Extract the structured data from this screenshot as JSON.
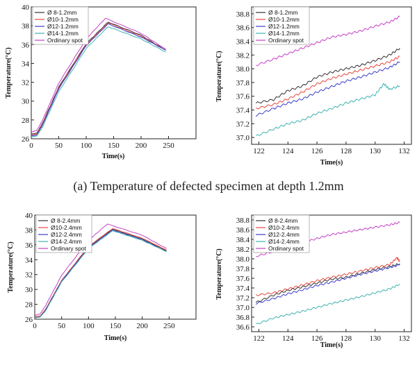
{
  "captions": [
    "(a) Temperature of defected specimen at depth 1.2mm",
    ""
  ],
  "chart_data": [
    {
      "type": "line",
      "xlabel": "Time(s)",
      "ylabel": "Temperature(°C)",
      "xlim": [
        0,
        300
      ],
      "ylim": [
        26,
        40
      ],
      "xticks": [
        "0",
        "50",
        "100",
        "150",
        "200",
        "250"
      ],
      "yticks": [
        "26",
        "28",
        "30",
        "32",
        "34",
        "36",
        "38",
        "40"
      ],
      "legend_position": "top-left",
      "series": [
        {
          "name": "Ø 8-1.2mm",
          "color": "#333333",
          "x": [
            0,
            10,
            20,
            50,
            100,
            140,
            200,
            245
          ],
          "y": [
            26.5,
            26.6,
            27.6,
            31.5,
            36.1,
            38.4,
            37.0,
            35.4
          ]
        },
        {
          "name": "Ø10-1.2mm",
          "color": "#e8483f",
          "x": [
            0,
            10,
            20,
            50,
            100,
            140,
            200,
            245
          ],
          "y": [
            26.4,
            26.5,
            27.5,
            31.4,
            36.0,
            38.3,
            36.9,
            35.4
          ]
        },
        {
          "name": "Ø12-1.2mm",
          "color": "#3b3bc9",
          "x": [
            0,
            10,
            20,
            50,
            100,
            140,
            200,
            245
          ],
          "y": [
            26.3,
            26.4,
            27.4,
            31.3,
            35.9,
            38.2,
            36.8,
            35.4
          ]
        },
        {
          "name": "Ø14-1.2mm",
          "color": "#3fb2b2",
          "x": [
            0,
            10,
            20,
            50,
            100,
            140,
            200,
            245
          ],
          "y": [
            26.2,
            26.3,
            27.2,
            31.0,
            35.6,
            37.9,
            36.6,
            35.2
          ]
        },
        {
          "name": "Ordinary spot",
          "color": "#c63fc6",
          "x": [
            0,
            10,
            20,
            50,
            100,
            135,
            200,
            245
          ],
          "y": [
            26.7,
            26.9,
            27.9,
            31.9,
            36.6,
            38.8,
            37.2,
            35.5
          ]
        }
      ]
    },
    {
      "type": "line",
      "xlabel": "Time(s)",
      "ylabel": "Temperature(°C)",
      "xlim": [
        121.5,
        132.5
      ],
      "ylim": [
        36.9,
        38.9
      ],
      "xticks": [
        "122",
        "124",
        "126",
        "128",
        "130",
        "132"
      ],
      "yticks": [
        "37.0",
        "37.2",
        "37.4",
        "37.6",
        "37.8",
        "38.0",
        "38.2",
        "38.4",
        "38.6",
        "38.8"
      ],
      "legend_position": "top-left",
      "series": [
        {
          "name": "Ø 8-1.2mm",
          "color": "#333333",
          "x": [
            121.8,
            123,
            124,
            125,
            126,
            127,
            128,
            129,
            130,
            131,
            131.7
          ],
          "y": [
            37.5,
            37.55,
            37.68,
            37.75,
            37.88,
            37.95,
            38.0,
            38.05,
            38.12,
            38.2,
            38.3
          ]
        },
        {
          "name": "Ø10-1.2mm",
          "color": "#e8483f",
          "x": [
            121.8,
            123,
            124,
            125,
            126,
            127,
            128,
            129,
            130,
            131,
            131.7
          ],
          "y": [
            37.42,
            37.48,
            37.56,
            37.66,
            37.78,
            37.86,
            37.92,
            37.98,
            38.04,
            38.1,
            38.18
          ]
        },
        {
          "name": "Ø12-1.2mm",
          "color": "#3b3bc9",
          "x": [
            121.8,
            123,
            124,
            125,
            126,
            127,
            128,
            129,
            130,
            131,
            131.7
          ],
          "y": [
            37.32,
            37.42,
            37.5,
            37.56,
            37.66,
            37.74,
            37.82,
            37.88,
            37.95,
            38.02,
            38.1
          ]
        },
        {
          "name": "Ø14-1.2mm",
          "color": "#3fb2b2",
          "x": [
            121.8,
            123,
            124,
            125,
            126,
            127,
            128,
            129,
            130,
            130.6,
            131,
            131.7
          ],
          "y": [
            37.02,
            37.12,
            37.2,
            37.25,
            37.35,
            37.42,
            37.5,
            37.56,
            37.62,
            37.78,
            37.7,
            37.75
          ]
        },
        {
          "name": "Ordinary spot",
          "color": "#c63fc6",
          "x": [
            121.8,
            123,
            124,
            125,
            126,
            127,
            128,
            129,
            130,
            131,
            131.7
          ],
          "y": [
            38.05,
            38.14,
            38.22,
            38.3,
            38.38,
            38.46,
            38.5,
            38.55,
            38.62,
            38.68,
            38.76
          ]
        }
      ]
    },
    {
      "type": "line",
      "xlabel": "Time(s)",
      "ylabel": "Temperature(°C)",
      "xlim": [
        0,
        300
      ],
      "ylim": [
        26,
        40
      ],
      "xticks": [
        "0",
        "50",
        "100",
        "150",
        "200",
        "250"
      ],
      "yticks": [
        "26",
        "28",
        "30",
        "32",
        "34",
        "36",
        "38",
        "40"
      ],
      "legend_position": "top-left",
      "series": [
        {
          "name": "Ø 8-2.4mm",
          "color": "#333333",
          "x": [
            0,
            10,
            20,
            50,
            100,
            145,
            200,
            245
          ],
          "y": [
            26.3,
            26.4,
            27.3,
            31.2,
            35.7,
            38.1,
            36.8,
            35.2
          ]
        },
        {
          "name": "Ø10-2.4mm",
          "color": "#e8483f",
          "x": [
            0,
            10,
            20,
            50,
            100,
            145,
            200,
            245
          ],
          "y": [
            26.3,
            26.4,
            27.3,
            31.2,
            35.8,
            38.2,
            36.9,
            35.3
          ]
        },
        {
          "name": "Ø12-2.4mm",
          "color": "#3b3bc9",
          "x": [
            0,
            10,
            20,
            50,
            100,
            145,
            200,
            245
          ],
          "y": [
            26.2,
            26.3,
            27.2,
            31.1,
            35.6,
            38.0,
            36.7,
            35.1
          ]
        },
        {
          "name": "Ø14-2.4mm",
          "color": "#3fb2b2",
          "x": [
            0,
            10,
            20,
            50,
            100,
            145,
            200,
            245
          ],
          "y": [
            26.2,
            26.3,
            27.1,
            31.0,
            35.5,
            37.9,
            36.6,
            35.1
          ]
        },
        {
          "name": "Ordinary spot",
          "color": "#c63fc6",
          "x": [
            0,
            10,
            20,
            50,
            100,
            135,
            200,
            245
          ],
          "y": [
            26.5,
            26.7,
            27.8,
            31.9,
            36.6,
            38.8,
            37.3,
            35.5
          ]
        }
      ]
    },
    {
      "type": "line",
      "xlabel": "Time(s)",
      "ylabel": "Temperature(°C)",
      "xlim": [
        121.5,
        132.5
      ],
      "ylim": [
        36.5,
        38.9
      ],
      "xticks": [
        "122",
        "124",
        "126",
        "128",
        "130",
        "132"
      ],
      "yticks": [
        "36.6",
        "36.8",
        "37.0",
        "37.2",
        "37.4",
        "37.6",
        "37.8",
        "38.0",
        "38.2",
        "38.4",
        "38.6",
        "38.8"
      ],
      "legend_position": "top-left",
      "series": [
        {
          "name": "Ø 8-2.4mm",
          "color": "#333333",
          "x": [
            121.8,
            123,
            124,
            125,
            126,
            127,
            128,
            129,
            130,
            131,
            131.7
          ],
          "y": [
            37.1,
            37.25,
            37.35,
            37.42,
            37.5,
            37.58,
            37.62,
            37.7,
            37.78,
            37.84,
            37.9
          ]
        },
        {
          "name": "Ø10-2.4mm",
          "color": "#e8483f",
          "x": [
            121.8,
            123,
            124,
            125,
            126,
            127,
            128,
            129,
            130,
            131,
            131.5,
            131.7
          ],
          "y": [
            37.25,
            37.3,
            37.38,
            37.46,
            37.55,
            37.62,
            37.68,
            37.75,
            37.82,
            37.88,
            38.02,
            37.95
          ]
        },
        {
          "name": "Ø12-2.4mm",
          "color": "#3b3bc9",
          "x": [
            121.8,
            123,
            124,
            125,
            126,
            127,
            128,
            129,
            130,
            131,
            131.7
          ],
          "y": [
            37.08,
            37.18,
            37.28,
            37.36,
            37.45,
            37.52,
            37.6,
            37.68,
            37.75,
            37.82,
            37.88
          ]
        },
        {
          "name": "Ø14-2.4mm",
          "color": "#3fb2b2",
          "x": [
            121.8,
            123,
            124,
            125,
            126,
            127,
            128,
            129,
            130,
            131,
            131.7
          ],
          "y": [
            36.65,
            36.78,
            36.85,
            36.92,
            37.0,
            37.08,
            37.15,
            37.22,
            37.3,
            37.38,
            37.48
          ]
        },
        {
          "name": "Ordinary spot",
          "color": "#c63fc6",
          "x": [
            121.8,
            123,
            124,
            125,
            126,
            127,
            128,
            129,
            130,
            131,
            131.7
          ],
          "y": [
            38.05,
            38.15,
            38.25,
            38.33,
            38.42,
            38.5,
            38.55,
            38.6,
            38.65,
            38.7,
            38.75
          ]
        }
      ]
    }
  ]
}
